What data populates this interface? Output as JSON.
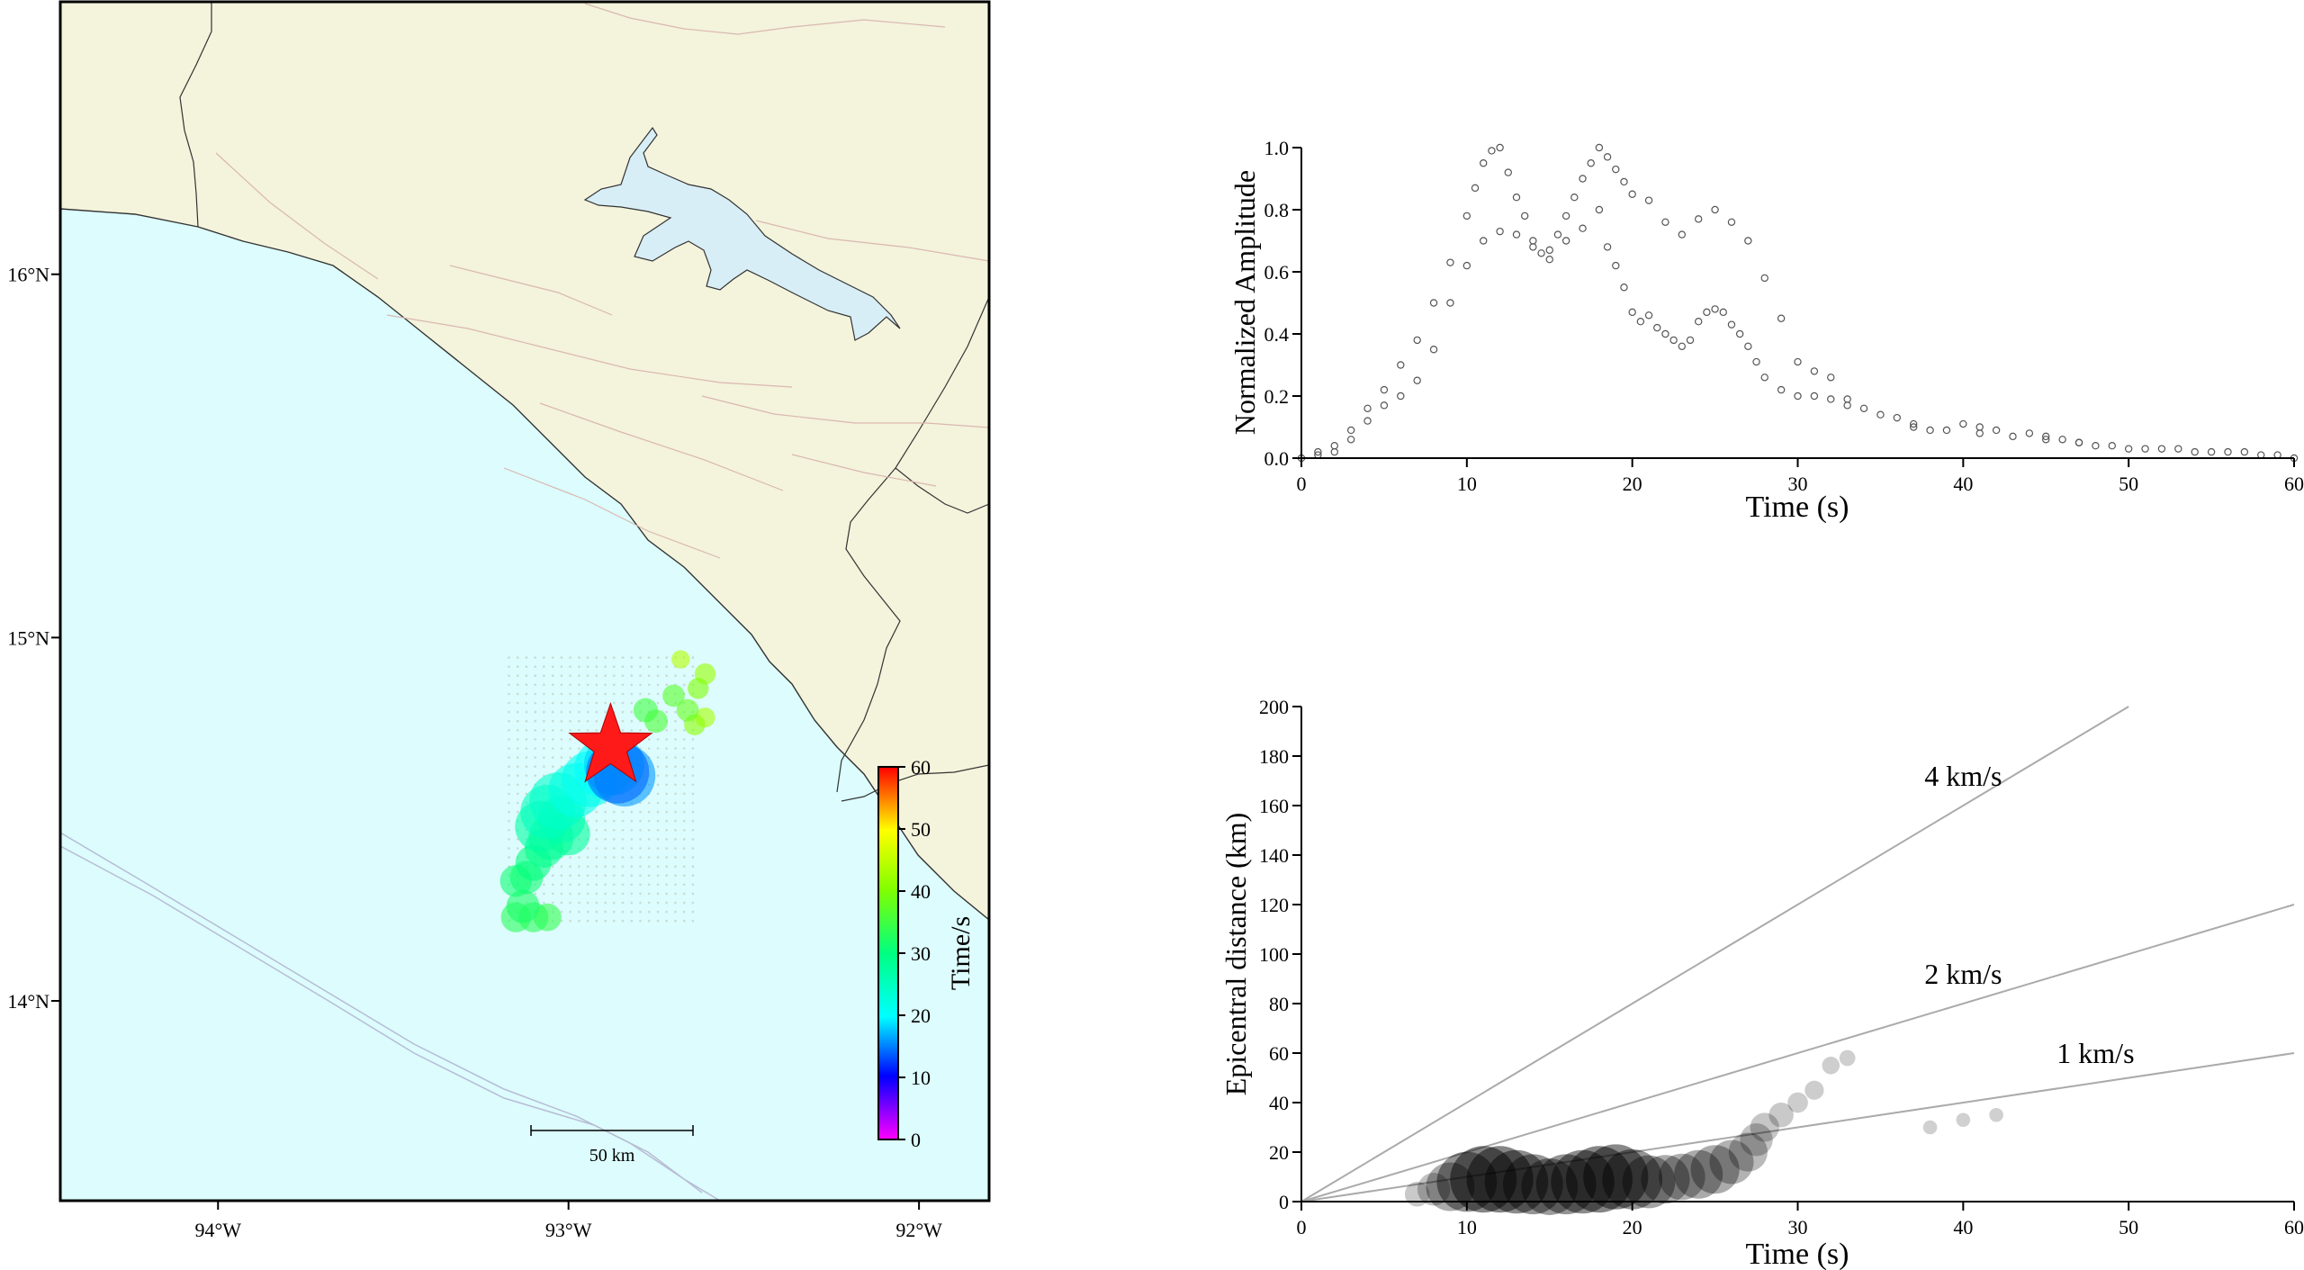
{
  "chart_data": [
    {
      "id": "map",
      "type": "scatter",
      "title": "",
      "xlim": [
        -94.45,
        -91.8
      ],
      "ylim": [
        13.45,
        16.75
      ],
      "x_ticks": [
        {
          "value": -94,
          "label": "94°W"
        },
        {
          "value": -93,
          "label": "93°W"
        },
        {
          "value": -92,
          "label": "92°W"
        }
      ],
      "y_ticks": [
        {
          "value": 14,
          "label": "14°N"
        },
        {
          "value": 15,
          "label": "15°N"
        },
        {
          "value": 16,
          "label": "16°N"
        }
      ],
      "colors": {
        "land": "#f4f3dc",
        "sea": "#dcfcfd",
        "lake": "#d8eef6",
        "coast": "#333333",
        "fault": "#d9b8b0",
        "trench": "#b8bcd4",
        "epicenter": "#ff1a1a"
      },
      "colorbar": {
        "label": "Time/s",
        "min": 0,
        "max": 60,
        "ticks": [
          0,
          10,
          20,
          30,
          40,
          50,
          60
        ]
      },
      "scalebar": {
        "label": "50 km"
      },
      "epicenter": {
        "lon": -92.88,
        "lat": 14.7
      },
      "sources": [
        {
          "lon": -92.86,
          "lat": 14.63,
          "t": 14,
          "amp": 1.0
        },
        {
          "lon": -92.84,
          "lat": 14.62,
          "t": 16,
          "amp": 0.95
        },
        {
          "lon": -92.87,
          "lat": 14.65,
          "t": 18,
          "amp": 0.9
        },
        {
          "lon": -92.9,
          "lat": 14.64,
          "t": 20,
          "amp": 0.85
        },
        {
          "lon": -92.94,
          "lat": 14.61,
          "t": 21,
          "amp": 0.75
        },
        {
          "lon": -92.98,
          "lat": 14.58,
          "t": 22,
          "amp": 0.7
        },
        {
          "lon": -93.03,
          "lat": 14.55,
          "t": 24,
          "amp": 0.8
        },
        {
          "lon": -93.06,
          "lat": 14.52,
          "t": 25,
          "amp": 0.7
        },
        {
          "lon": -93.02,
          "lat": 14.5,
          "t": 26,
          "amp": 0.5
        },
        {
          "lon": -93.08,
          "lat": 14.48,
          "t": 27,
          "amp": 0.6
        },
        {
          "lon": -93.05,
          "lat": 14.45,
          "t": 28,
          "amp": 0.45
        },
        {
          "lon": -93.0,
          "lat": 14.46,
          "t": 28,
          "amp": 0.4
        },
        {
          "lon": -93.07,
          "lat": 14.42,
          "t": 29,
          "amp": 0.3
        },
        {
          "lon": -93.1,
          "lat": 14.38,
          "t": 30,
          "amp": 0.25
        },
        {
          "lon": -93.12,
          "lat": 14.34,
          "t": 31,
          "amp": 0.2
        },
        {
          "lon": -93.15,
          "lat": 14.33,
          "t": 31,
          "amp": 0.18
        },
        {
          "lon": -93.13,
          "lat": 14.26,
          "t": 32,
          "amp": 0.2
        },
        {
          "lon": -93.1,
          "lat": 14.23,
          "t": 33,
          "amp": 0.15
        },
        {
          "lon": -93.15,
          "lat": 14.23,
          "t": 33,
          "amp": 0.15
        },
        {
          "lon": -93.06,
          "lat": 14.23,
          "t": 34,
          "amp": 0.12
        },
        {
          "lon": -92.78,
          "lat": 14.8,
          "t": 35,
          "amp": 0.08
        },
        {
          "lon": -92.75,
          "lat": 14.77,
          "t": 36,
          "amp": 0.07
        },
        {
          "lon": -92.7,
          "lat": 14.84,
          "t": 37,
          "amp": 0.06
        },
        {
          "lon": -92.66,
          "lat": 14.8,
          "t": 38,
          "amp": 0.06
        },
        {
          "lon": -92.63,
          "lat": 14.86,
          "t": 40,
          "amp": 0.05
        },
        {
          "lon": -92.61,
          "lat": 14.9,
          "t": 42,
          "amp": 0.05
        },
        {
          "lon": -92.64,
          "lat": 14.76,
          "t": 41,
          "amp": 0.05
        },
        {
          "lon": -92.61,
          "lat": 14.78,
          "t": 43,
          "amp": 0.04
        },
        {
          "lon": -92.68,
          "lat": 14.94,
          "t": 44,
          "amp": 0.03
        }
      ]
    },
    {
      "id": "amplitude",
      "type": "scatter",
      "title": "",
      "xlabel": "Time (s)",
      "ylabel": "Normalized Amplitude",
      "xlim": [
        0,
        60
      ],
      "ylim": [
        0,
        1
      ],
      "x_ticks": [
        0,
        10,
        20,
        30,
        40,
        50,
        60
      ],
      "y_ticks": [
        0.0,
        0.2,
        0.4,
        0.6,
        0.8,
        1.0
      ],
      "y_tick_labels": [
        "0.0",
        "0.2",
        "0.4",
        "0.6",
        "0.8",
        "1.0"
      ],
      "series": [
        {
          "x": [
            0,
            1,
            2,
            3,
            4,
            5,
            6,
            7,
            8,
            9,
            10,
            10.5,
            11,
            11.5,
            12,
            12.5,
            13,
            13.5,
            14,
            14.5,
            15,
            15.5,
            16,
            16.5,
            17,
            17.5,
            18,
            18.5,
            19,
            19.5,
            20,
            21,
            22,
            23,
            24,
            25,
            26,
            27,
            28,
            29,
            30,
            31,
            32,
            33,
            34,
            36,
            37,
            38,
            40,
            41,
            42,
            44,
            45,
            46,
            47,
            48,
            50,
            52,
            54,
            56,
            58,
            60
          ],
          "y": [
            0.0,
            0.02,
            0.04,
            0.09,
            0.16,
            0.22,
            0.3,
            0.38,
            0.5,
            0.63,
            0.78,
            0.87,
            0.95,
            0.99,
            1.0,
            0.92,
            0.84,
            0.78,
            0.7,
            0.66,
            0.67,
            0.72,
            0.78,
            0.84,
            0.9,
            0.95,
            1.0,
            0.97,
            0.93,
            0.89,
            0.85,
            0.83,
            0.76,
            0.72,
            0.77,
            0.8,
            0.76,
            0.7,
            0.58,
            0.45,
            0.31,
            0.28,
            0.26,
            0.19,
            0.16,
            0.13,
            0.11,
            0.09,
            0.11,
            0.1,
            0.09,
            0.08,
            0.07,
            0.06,
            0.05,
            0.04,
            0.03,
            0.03,
            0.02,
            0.02,
            0.01,
            0.0
          ]
        },
        {
          "x": [
            1,
            2,
            3,
            4,
            5,
            6,
            7,
            8,
            9,
            10,
            11,
            12,
            13,
            14,
            15,
            16,
            17,
            18,
            18.5,
            19,
            19.5,
            20,
            20.5,
            21,
            21.5,
            22,
            22.5,
            23,
            23.5,
            24,
            24.5,
            25,
            25.5,
            26,
            26.5,
            27,
            27.5,
            28,
            29,
            30,
            31,
            32,
            33,
            35,
            37,
            39,
            41,
            43,
            45,
            47,
            49,
            51,
            53,
            55,
            57,
            59
          ],
          "y": [
            0.01,
            0.02,
            0.06,
            0.12,
            0.17,
            0.2,
            0.25,
            0.35,
            0.5,
            0.62,
            0.7,
            0.73,
            0.72,
            0.68,
            0.64,
            0.7,
            0.74,
            0.8,
            0.68,
            0.62,
            0.55,
            0.47,
            0.44,
            0.46,
            0.42,
            0.4,
            0.38,
            0.36,
            0.38,
            0.44,
            0.47,
            0.48,
            0.47,
            0.43,
            0.4,
            0.36,
            0.31,
            0.26,
            0.22,
            0.2,
            0.2,
            0.19,
            0.17,
            0.14,
            0.1,
            0.09,
            0.08,
            0.07,
            0.06,
            0.05,
            0.04,
            0.03,
            0.03,
            0.02,
            0.02,
            0.01
          ]
        }
      ]
    },
    {
      "id": "distance",
      "type": "scatter",
      "title": "",
      "xlabel": "Time (s)",
      "ylabel": "Epicentral distance (km)",
      "xlim": [
        0,
        60
      ],
      "ylim": [
        0,
        200
      ],
      "x_ticks": [
        0,
        10,
        20,
        30,
        40,
        50,
        60
      ],
      "y_ticks": [
        0,
        20,
        40,
        60,
        80,
        100,
        120,
        140,
        160,
        180,
        200
      ],
      "reference_lines": [
        {
          "label": "4 km/s",
          "speed": 4
        },
        {
          "label": "2 km/s",
          "speed": 2
        },
        {
          "label": "1 km/s",
          "speed": 1
        }
      ],
      "points": [
        {
          "t": 7,
          "d": 3,
          "amp": 0.1
        },
        {
          "t": 8,
          "d": 5,
          "amp": 0.2
        },
        {
          "t": 9,
          "d": 6,
          "amp": 0.5
        },
        {
          "t": 10,
          "d": 8,
          "amp": 0.8
        },
        {
          "t": 11,
          "d": 9,
          "amp": 1.0
        },
        {
          "t": 12,
          "d": 9,
          "amp": 1.0
        },
        {
          "t": 13,
          "d": 8,
          "amp": 0.9
        },
        {
          "t": 14,
          "d": 7,
          "amp": 0.8
        },
        {
          "t": 15,
          "d": 6,
          "amp": 0.7
        },
        {
          "t": 16,
          "d": 7,
          "amp": 0.8
        },
        {
          "t": 17,
          "d": 8,
          "amp": 0.9
        },
        {
          "t": 18,
          "d": 9,
          "amp": 1.0
        },
        {
          "t": 19,
          "d": 10,
          "amp": 0.95
        },
        {
          "t": 20,
          "d": 9,
          "amp": 0.8
        },
        {
          "t": 21,
          "d": 8,
          "amp": 0.6
        },
        {
          "t": 22,
          "d": 9,
          "amp": 0.5
        },
        {
          "t": 23,
          "d": 10,
          "amp": 0.45
        },
        {
          "t": 24,
          "d": 11,
          "amp": 0.5
        },
        {
          "t": 25,
          "d": 13,
          "amp": 0.5
        },
        {
          "t": 26,
          "d": 16,
          "amp": 0.4
        },
        {
          "t": 27,
          "d": 20,
          "amp": 0.3
        },
        {
          "t": 27.5,
          "d": 25,
          "amp": 0.2
        },
        {
          "t": 28,
          "d": 30,
          "amp": 0.15
        },
        {
          "t": 29,
          "d": 35,
          "amp": 0.1
        },
        {
          "t": 30,
          "d": 40,
          "amp": 0.06
        },
        {
          "t": 31,
          "d": 45,
          "amp": 0.05
        },
        {
          "t": 32,
          "d": 55,
          "amp": 0.04
        },
        {
          "t": 33,
          "d": 58,
          "amp": 0.03
        },
        {
          "t": 38,
          "d": 30,
          "amp": 0.02
        },
        {
          "t": 40,
          "d": 33,
          "amp": 0.02
        },
        {
          "t": 42,
          "d": 35,
          "amp": 0.02
        }
      ]
    }
  ]
}
